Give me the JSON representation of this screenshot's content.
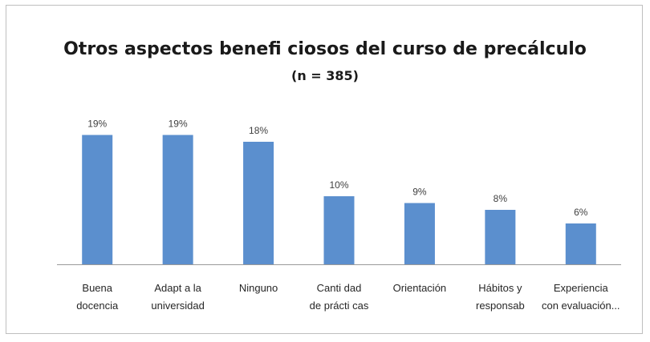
{
  "chart_data": {
    "type": "bar",
    "title": "Otros aspectos benefi  ciosos del curso de precálculo",
    "subtitle": "(n = 385)",
    "categories": [
      [
        "Buena",
        "docencia"
      ],
      [
        "Adapt a la",
        "universidad"
      ],
      [
        "Ninguno"
      ],
      [
        "Canti  dad",
        "de prácti  cas"
      ],
      [
        "Orientación"
      ],
      [
        "Hábitos y",
        "responsab"
      ],
      [
        "Experiencia",
        "con evaluación..."
      ]
    ],
    "values": [
      19,
      19,
      18,
      10,
      9,
      8,
      6
    ],
    "data_labels": [
      "19%",
      "19%",
      "18%",
      "10%",
      "9%",
      "8%",
      "6%"
    ],
    "ylim": [
      0,
      20
    ],
    "grid": false,
    "legend": "none",
    "bar_color": "#5b8fce"
  }
}
